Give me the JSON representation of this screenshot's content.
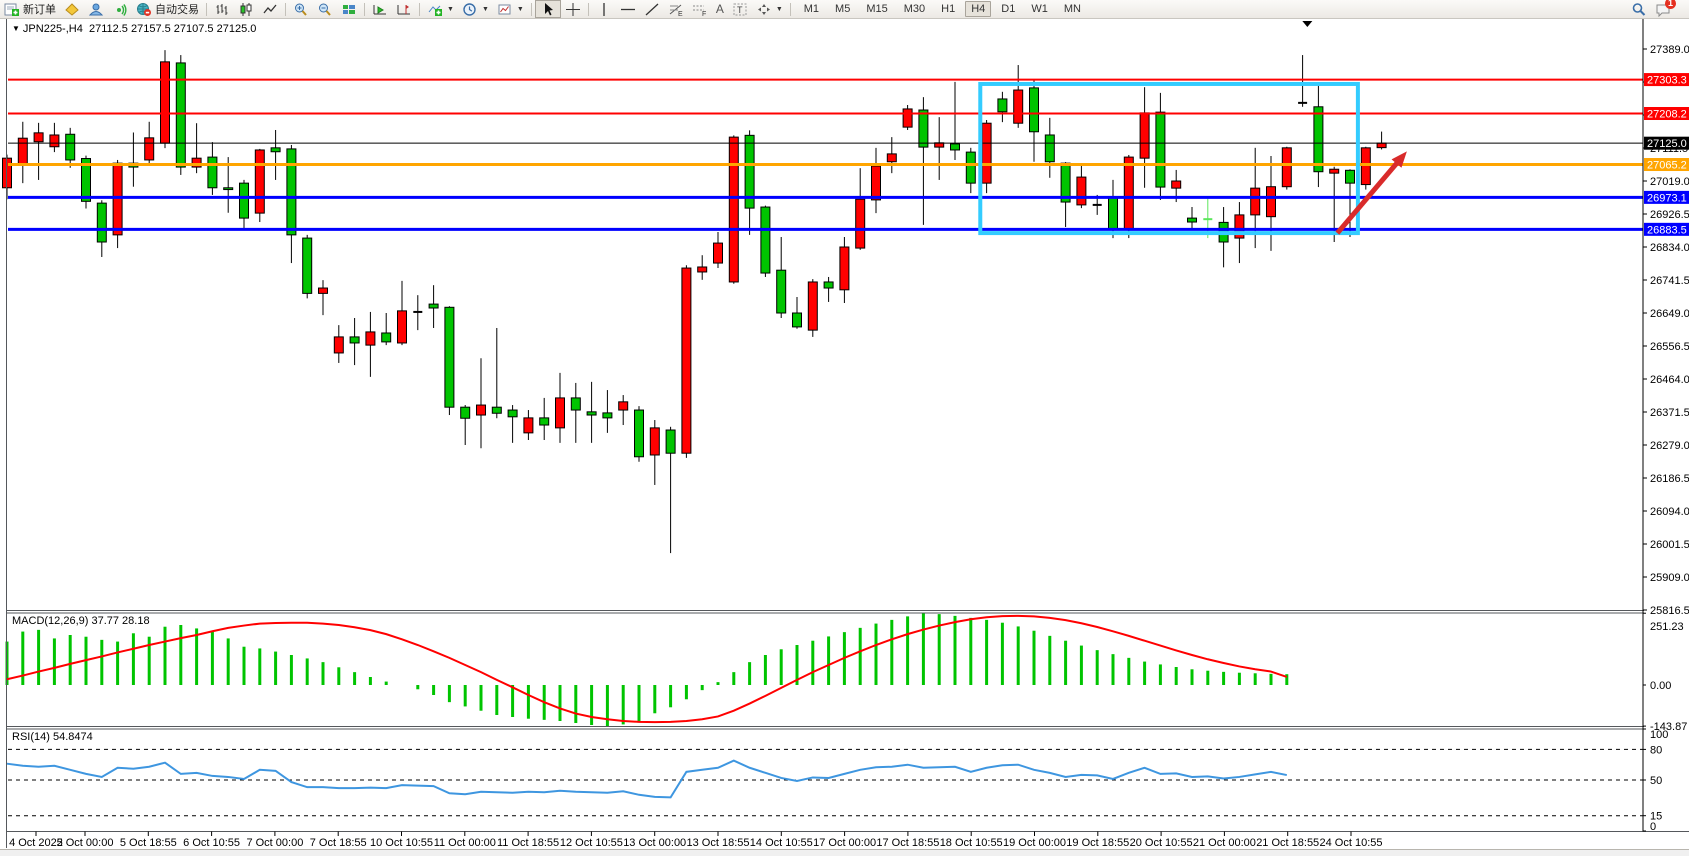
{
  "window": {
    "title_symbol": "JPN225-,H4",
    "title_ohlc": "27112.5 27157.5 27107.5 27125.0"
  },
  "toolbar": {
    "new_order_label": "新订单",
    "auto_trading_label": "自动交易",
    "text_tool_a": "A",
    "text_tool_t": "T",
    "fibo_suffix": "E",
    "channel_suffix": "F",
    "timeframes": [
      "M1",
      "M5",
      "M15",
      "M30",
      "H1",
      "H4",
      "D1",
      "W1",
      "MN"
    ],
    "active_timeframe": "H4",
    "notification_count": "1"
  },
  "chart_data": {
    "type": "candlestick",
    "symbol": "JPN225-",
    "period": "H4",
    "title": "JPN225-,H4  27112.5 27157.5 27107.5 27125.0",
    "ohlc_current": {
      "open": 27112.5,
      "high": 27157.5,
      "low": 27107.5,
      "close": 27125.0
    },
    "y_ticks": [
      27389.0,
      27296.5,
      27204.0,
      27111.5,
      27019.0,
      26926.5,
      26834.0,
      26741.5,
      26649.0,
      26556.5,
      26464.0,
      26371.5,
      26279.0,
      26186.5,
      26094.0,
      26001.5,
      25909.0,
      25816.5
    ],
    "price_lines": [
      {
        "price": 27303.3,
        "color": "#FF0000",
        "width": 2
      },
      {
        "price": 27208.2,
        "color": "#FF0000",
        "width": 2
      },
      {
        "price": 27125.0,
        "color": "#000000",
        "width": 1
      },
      {
        "price": 27065.2,
        "color": "#FFA500",
        "width": 3
      },
      {
        "price": 26973.1,
        "color": "#0000FF",
        "width": 3
      },
      {
        "price": 26883.5,
        "color": "#0000FF",
        "width": 3
      }
    ],
    "candle_colors": {
      "r": "#FF0000",
      "g": "#00C400",
      "k": "#000000",
      "l": "#5CE65C"
    },
    "candles": [
      [
        27000,
        27093,
        26968,
        27083,
        "r"
      ],
      [
        27064,
        27185,
        27013,
        27139,
        "r"
      ],
      [
        27129,
        27182,
        27022,
        27154,
        "r"
      ],
      [
        27115,
        27182,
        27100,
        27148,
        "r"
      ],
      [
        27150,
        27168,
        27056,
        27078,
        "g"
      ],
      [
        27082,
        27090,
        26942,
        26962,
        "g"
      ],
      [
        26957,
        26965,
        26806,
        26848,
        "g"
      ],
      [
        26868,
        27078,
        26831,
        27069,
        "r"
      ],
      [
        27069,
        27155,
        27003,
        27058,
        "g"
      ],
      [
        27078,
        27185,
        27064,
        27140,
        "r"
      ],
      [
        27125,
        27386,
        27111,
        27353,
        "r"
      ],
      [
        27350,
        27372,
        27036,
        27058,
        "g"
      ],
      [
        27058,
        27181,
        27041,
        27083,
        "r"
      ],
      [
        27086,
        27128,
        26980,
        27000,
        "g"
      ],
      [
        27000,
        27086,
        26930,
        26995,
        "g"
      ],
      [
        27013,
        27022,
        26882,
        26915,
        "g"
      ],
      [
        26929,
        27109,
        26904,
        27106,
        "r"
      ],
      [
        27112,
        27162,
        27022,
        27101,
        "g"
      ],
      [
        27109,
        27120,
        26789,
        26868,
        "g"
      ],
      [
        26859,
        26868,
        26690,
        26704,
        "g"
      ],
      [
        26704,
        26741,
        26643,
        26719,
        "r"
      ],
      [
        26537,
        26615,
        26509,
        26582,
        "r"
      ],
      [
        26582,
        26635,
        26503,
        26565,
        "g"
      ],
      [
        26559,
        26652,
        26470,
        26596,
        "r"
      ],
      [
        26593,
        26649,
        26559,
        26568,
        "g"
      ],
      [
        26565,
        26739,
        26559,
        26655,
        "r"
      ],
      [
        26652,
        26699,
        26601,
        26652,
        "k"
      ],
      [
        26674,
        26727,
        26607,
        26663,
        "g"
      ],
      [
        26665,
        26668,
        26363,
        26385,
        "g"
      ],
      [
        26385,
        26391,
        26279,
        26354,
        "g"
      ],
      [
        26363,
        26522,
        26270,
        26391,
        "r"
      ],
      [
        26385,
        26607,
        26354,
        26368,
        "g"
      ],
      [
        26377,
        26391,
        26285,
        26358,
        "g"
      ],
      [
        26313,
        26377,
        26293,
        26355,
        "r"
      ],
      [
        26355,
        26411,
        26293,
        26335,
        "g"
      ],
      [
        26327,
        26481,
        26285,
        26411,
        "r"
      ],
      [
        26411,
        26453,
        26285,
        26377,
        "g"
      ],
      [
        26372,
        26456,
        26285,
        26363,
        "g"
      ],
      [
        26369,
        26433,
        26313,
        26355,
        "g"
      ],
      [
        26377,
        26419,
        26335,
        26400,
        "r"
      ],
      [
        26377,
        26388,
        26232,
        26246,
        "g"
      ],
      [
        26251,
        26349,
        26167,
        26327,
        "r"
      ],
      [
        26321,
        26330,
        25976,
        26256,
        "g"
      ],
      [
        26256,
        26783,
        26243,
        26775,
        "r"
      ],
      [
        26764,
        26811,
        26742,
        26778,
        "r"
      ],
      [
        26789,
        26876,
        26775,
        26845,
        "r"
      ],
      [
        26736,
        27147,
        26731,
        27142,
        "r"
      ],
      [
        27147,
        27161,
        26868,
        26943,
        "g"
      ],
      [
        26946,
        26950,
        26750,
        26761,
        "g"
      ],
      [
        26769,
        26862,
        26635,
        26649,
        "g"
      ],
      [
        26649,
        26694,
        26605,
        26610,
        "g"
      ],
      [
        26601,
        26744,
        26582,
        26736,
        "r"
      ],
      [
        26736,
        26750,
        26680,
        26719,
        "g"
      ],
      [
        26714,
        26862,
        26677,
        26834,
        "r"
      ],
      [
        26831,
        27055,
        26826,
        26968,
        "r"
      ],
      [
        26966,
        27112,
        26929,
        27061,
        "r"
      ],
      [
        27073,
        27142,
        27041,
        27095,
        "r"
      ],
      [
        27170,
        27232,
        27162,
        27221,
        "r"
      ],
      [
        27218,
        27254,
        26896,
        27114,
        "g"
      ],
      [
        27114,
        27198,
        27022,
        27126,
        "r"
      ],
      [
        27123,
        27297,
        27078,
        27106,
        "g"
      ],
      [
        27100,
        27112,
        26985,
        27013,
        "g"
      ],
      [
        27013,
        27190,
        26985,
        27181,
        "r"
      ],
      [
        27249,
        27269,
        27184,
        27213,
        "g"
      ],
      [
        27181,
        27344,
        27168,
        27274,
        "r"
      ],
      [
        27280,
        27302,
        27073,
        27157,
        "g"
      ],
      [
        27148,
        27196,
        27028,
        27073,
        "g"
      ],
      [
        27069,
        27072,
        26890,
        26960,
        "g"
      ],
      [
        26952,
        27064,
        26943,
        27030,
        "r"
      ],
      [
        26952,
        26980,
        26924,
        26952,
        "k"
      ],
      [
        26974,
        27022,
        26859,
        26882,
        "g"
      ],
      [
        26882,
        27092,
        26859,
        27086,
        "r"
      ],
      [
        27083,
        27282,
        27000,
        27210,
        "r"
      ],
      [
        27212,
        27266,
        26966,
        27002,
        "g"
      ],
      [
        26999,
        27050,
        26960,
        27019,
        "r"
      ],
      [
        26915,
        26946,
        26887,
        26904,
        "g"
      ],
      [
        26912,
        26974,
        26859,
        26912,
        "l"
      ],
      [
        26903,
        26946,
        26777,
        26848,
        "g"
      ],
      [
        26859,
        26960,
        26789,
        26924,
        "r"
      ],
      [
        26924,
        27112,
        26831,
        26999,
        "r"
      ],
      [
        26919,
        27089,
        26823,
        27003,
        "r"
      ],
      [
        27003,
        27115,
        26995,
        27112,
        "r"
      ],
      [
        27238,
        27372,
        27227,
        27238,
        "k"
      ],
      [
        27227,
        27288,
        27002,
        27045,
        "g"
      ],
      [
        27041,
        27059,
        26848,
        27052,
        "r"
      ],
      [
        27049,
        27052,
        26862,
        27013,
        "g"
      ],
      [
        27009,
        27115,
        26995,
        27112,
        "r"
      ],
      [
        27112.5,
        27157.5,
        27107.5,
        27125.0,
        "r"
      ]
    ],
    "x_labels": [
      "4 Oct 2022",
      "5 Oct 00:00",
      "5 Oct 18:55",
      "6 Oct 10:55",
      "7 Oct 00:00",
      "7 Oct 18:55",
      "10 Oct 10:55",
      "11 Oct 00:00",
      "11 Oct 18:55",
      "12 Oct 10:55",
      "13 Oct 00:00",
      "13 Oct 18:55",
      "14 Oct 10:55",
      "17 Oct 00:00",
      "17 Oct 18:55",
      "18 Oct 10:55",
      "19 Oct 00:00",
      "19 Oct 18:55",
      "20 Oct 10:55",
      "21 Oct 00:00",
      "21 Oct 18:55",
      "24 Oct 10:55"
    ],
    "annotations": {
      "rectangle": {
        "from_index": 61.6,
        "to_index": 85.5,
        "top_price": 27291,
        "bottom_price": 26873,
        "color": "#33CCFF"
      },
      "arrow": {
        "from_index": 84.2,
        "from_price": 26873,
        "to_index": 88.6,
        "to_price": 27102,
        "color": "#D92B2B"
      },
      "shift_marker_index": 82.3
    },
    "macd": {
      "label": "MACD(12,26,9) 37.77 28.18",
      "params": "12,26,9",
      "value": 37.77,
      "signal_value": 28.18,
      "scale_labels": [
        "251.23",
        "0.00",
        "-143.87"
      ],
      "hist_color": "#00C400",
      "signal_color": "#FF0000",
      "histogram": [
        152,
        187,
        193,
        163,
        175,
        169,
        158,
        152,
        181,
        169,
        204,
        210,
        198,
        187,
        163,
        134,
        128,
        117,
        105,
        93,
        80,
        62,
        45,
        28,
        12,
        0,
        -15,
        -35,
        -60,
        -75,
        -90,
        -105,
        -112,
        -118,
        -122,
        -126,
        -133,
        -140,
        -144,
        -138,
        -130,
        -99,
        -78,
        -50,
        -18,
        10,
        45,
        80,
        105,
        125,
        140,
        155,
        170,
        185,
        200,
        215,
        228,
        240,
        251,
        248,
        242,
        235,
        228,
        218,
        205,
        190,
        172,
        155,
        138,
        122,
        108,
        95,
        82,
        72,
        63,
        55,
        50,
        46,
        43,
        41,
        39,
        37.8
      ],
      "signal": [
        20,
        33,
        47,
        60,
        74,
        87,
        100,
        114,
        127,
        140,
        152,
        164,
        175,
        188,
        200,
        208,
        215,
        217,
        218,
        218,
        215,
        210,
        202,
        192,
        178,
        160,
        140,
        118,
        95,
        70,
        45,
        18,
        -8,
        -35,
        -60,
        -82,
        -100,
        -112,
        -120,
        -126,
        -129,
        -130,
        -129,
        -126,
        -120,
        -110,
        -90,
        -65,
        -38,
        -10,
        18,
        45,
        70,
        95,
        118,
        140,
        160,
        178,
        194,
        208,
        220,
        230,
        237,
        241,
        242,
        240,
        235,
        227,
        216,
        203,
        188,
        172,
        155,
        138,
        121,
        105,
        90,
        77,
        65,
        55,
        47,
        28.2
      ]
    },
    "rsi": {
      "label": "RSI(14) 54.8474",
      "period": 14,
      "value": 54.8474,
      "scale_labels": [
        100,
        80,
        50,
        15,
        0
      ],
      "levels": [
        80,
        50,
        15
      ],
      "color": "#3E96E0",
      "values": [
        66,
        64,
        63,
        64,
        60,
        56,
        53,
        62,
        61,
        63,
        67,
        56,
        57,
        54,
        53,
        51,
        60,
        59,
        48,
        43,
        43,
        42,
        42,
        42.5,
        42,
        45,
        44.5,
        44,
        37,
        36,
        38.5,
        38,
        37.5,
        38.5,
        38,
        39.5,
        38.5,
        38,
        37.5,
        39,
        35.5,
        33.5,
        33,
        58,
        60,
        62,
        69,
        62,
        57,
        52,
        49,
        52.5,
        52,
        56,
        60,
        62.5,
        63,
        65,
        62,
        62.5,
        63,
        58,
        62,
        64.5,
        65,
        60,
        57,
        53,
        55,
        54.5,
        51,
        57,
        62,
        56,
        56.5,
        53,
        53.5,
        51.5,
        53,
        55.5,
        58,
        54.85
      ]
    }
  }
}
